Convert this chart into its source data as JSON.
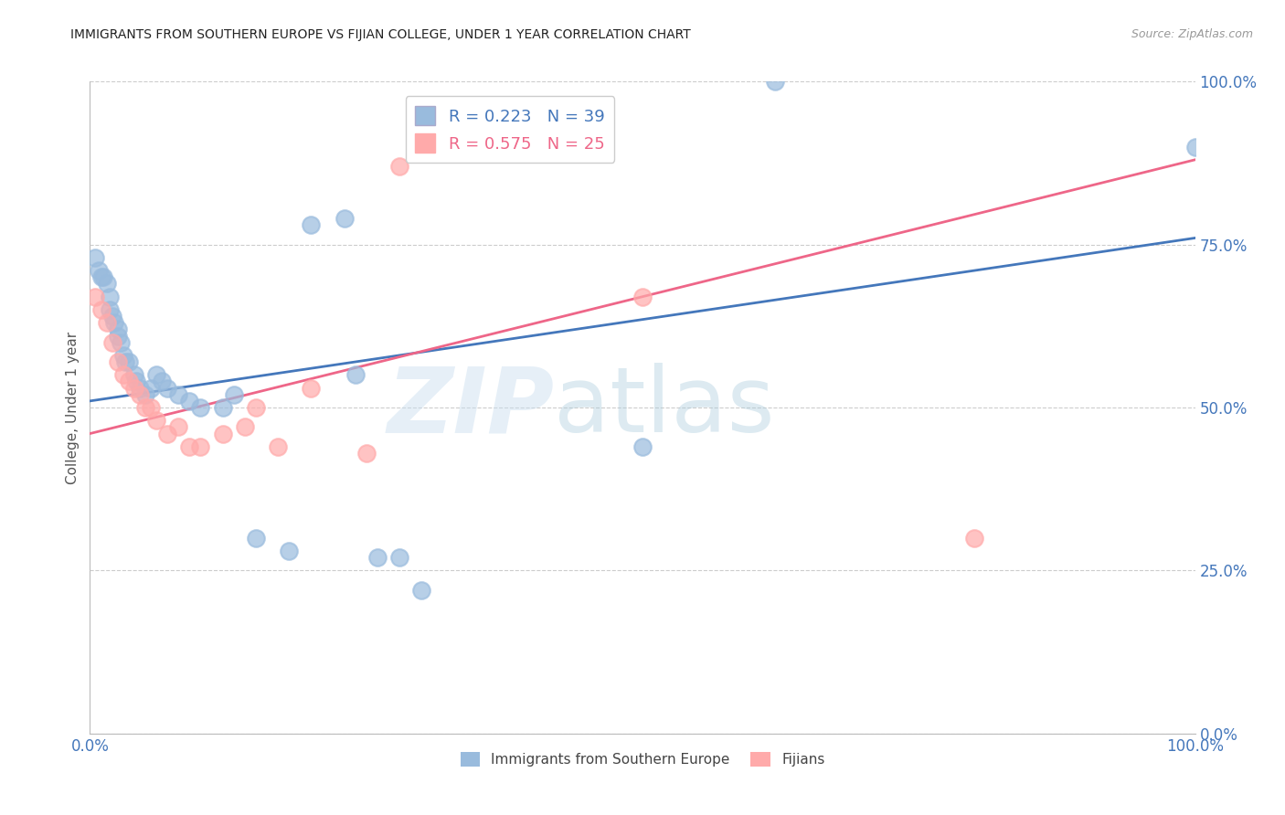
{
  "title": "IMMIGRANTS FROM SOUTHERN EUROPE VS FIJIAN COLLEGE, UNDER 1 YEAR CORRELATION CHART",
  "source": "Source: ZipAtlas.com",
  "ylabel": "College, Under 1 year",
  "ytick_labels": [
    "0.0%",
    "25.0%",
    "50.0%",
    "75.0%",
    "100.0%"
  ],
  "ytick_values": [
    0.0,
    25.0,
    50.0,
    75.0,
    100.0
  ],
  "blue_color": "#99BBDD",
  "pink_color": "#FFAAAA",
  "blue_line_color": "#4477BB",
  "pink_line_color": "#EE6688",
  "blue_label": "Immigrants from Southern Europe",
  "pink_label": "Fijians",
  "grid_color": "#CCCCCC",
  "blue_R": 0.223,
  "pink_R": 0.575,
  "blue_N": 39,
  "pink_N": 25,
  "xmin": 0.0,
  "xmax": 100.0,
  "ymin": 0.0,
  "ymax": 100.0,
  "blue_scatter_x": [
    0.5,
    0.8,
    1.0,
    1.2,
    1.5,
    1.8,
    1.8,
    2.0,
    2.2,
    2.5,
    2.5,
    2.8,
    3.0,
    3.2,
    3.5,
    4.0,
    4.2,
    4.5,
    5.0,
    5.5,
    6.0,
    6.5,
    7.0,
    8.0,
    9.0,
    10.0,
    12.0,
    13.0,
    15.0,
    18.0,
    20.0,
    23.0,
    24.0,
    26.0,
    28.0,
    30.0,
    50.0,
    62.0,
    100.0
  ],
  "blue_scatter_y": [
    73.0,
    71.0,
    70.0,
    70.0,
    69.0,
    67.0,
    65.0,
    64.0,
    63.0,
    62.0,
    61.0,
    60.0,
    58.0,
    57.0,
    57.0,
    55.0,
    54.0,
    53.0,
    52.0,
    53.0,
    55.0,
    54.0,
    53.0,
    52.0,
    51.0,
    50.0,
    50.0,
    52.0,
    30.0,
    28.0,
    78.0,
    79.0,
    55.0,
    27.0,
    27.0,
    22.0,
    44.0,
    100.0,
    90.0
  ],
  "pink_scatter_x": [
    0.5,
    1.0,
    1.5,
    2.0,
    2.5,
    3.0,
    3.5,
    4.0,
    4.5,
    5.0,
    5.5,
    6.0,
    7.0,
    8.0,
    9.0,
    10.0,
    12.0,
    14.0,
    15.0,
    17.0,
    20.0,
    25.0,
    28.0,
    50.0,
    80.0
  ],
  "pink_scatter_y": [
    67.0,
    65.0,
    63.0,
    60.0,
    57.0,
    55.0,
    54.0,
    53.0,
    52.0,
    50.0,
    50.0,
    48.0,
    46.0,
    47.0,
    44.0,
    44.0,
    46.0,
    47.0,
    50.0,
    44.0,
    53.0,
    43.0,
    87.0,
    67.0,
    30.0
  ],
  "blue_line_x0": 0.0,
  "blue_line_y0": 51.0,
  "blue_line_x1": 100.0,
  "blue_line_y1": 76.0,
  "pink_line_x0": 0.0,
  "pink_line_y0": 46.0,
  "pink_line_x1": 100.0,
  "pink_line_y1": 88.0
}
